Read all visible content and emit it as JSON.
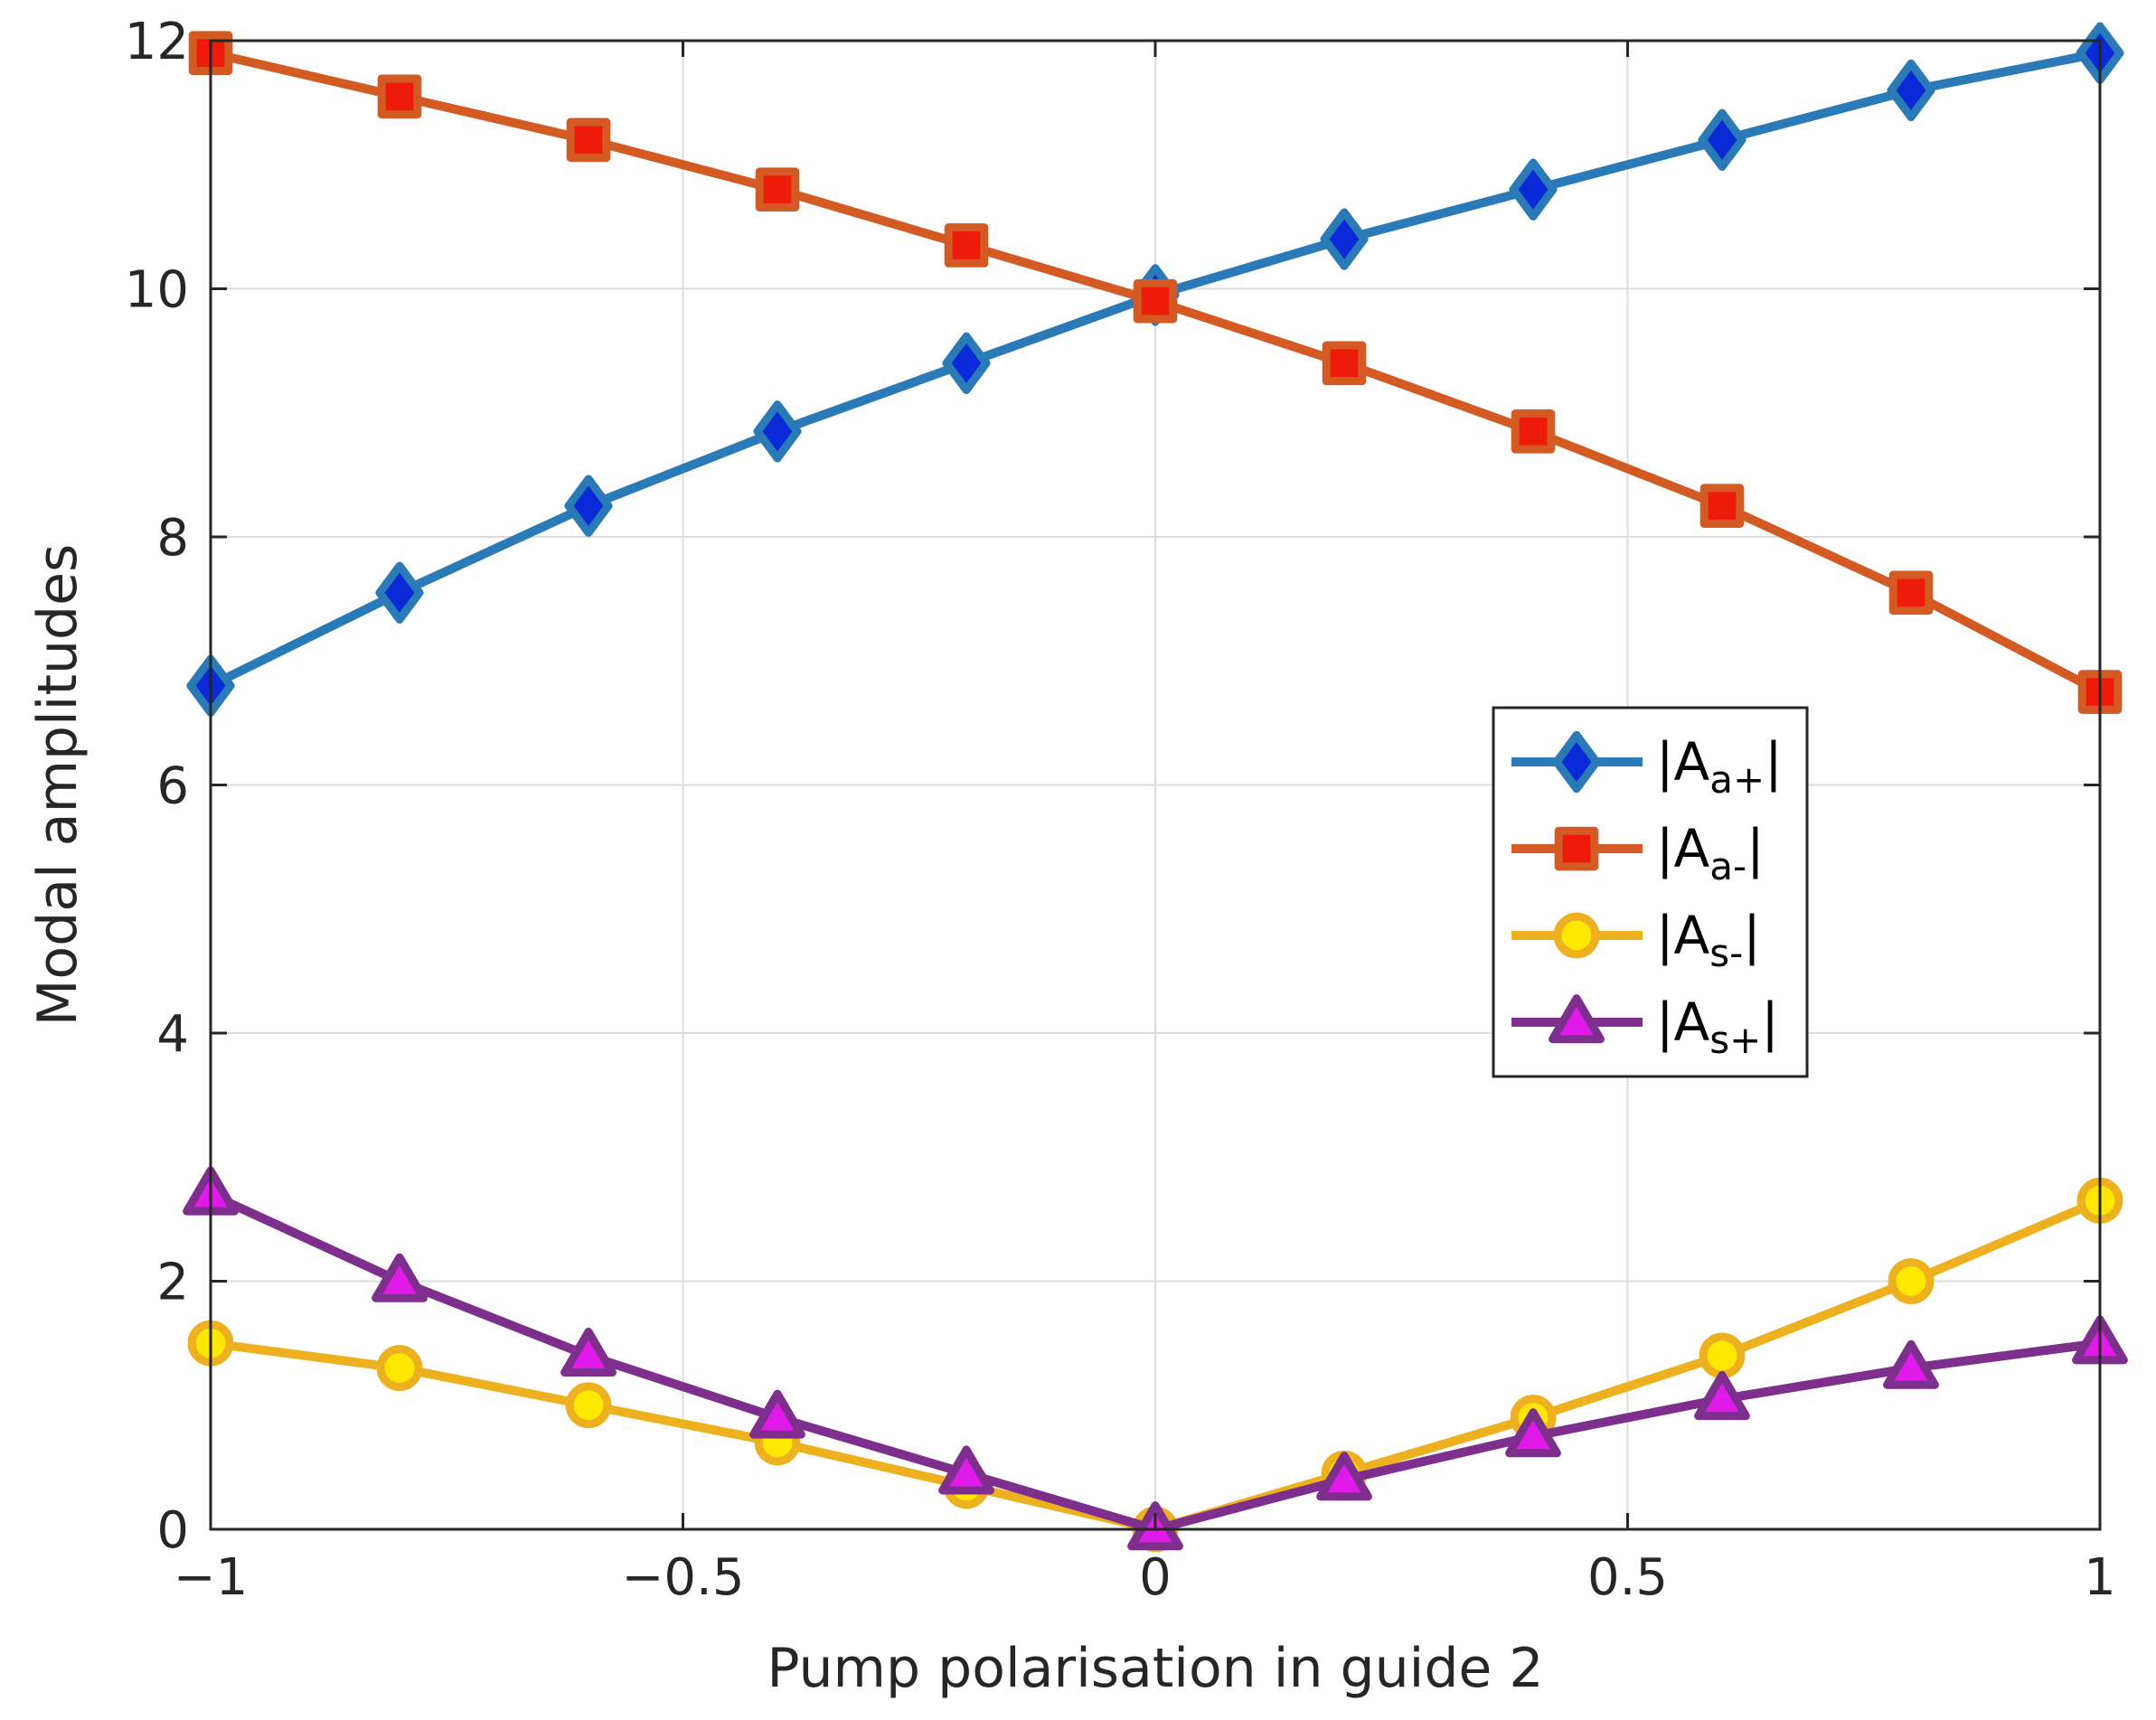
{
  "chart_data": {
    "type": "line",
    "title": "",
    "xlabel": "Pump polarisation in guide 2",
    "ylabel": "Modal amplitudes",
    "xlim": [
      -1,
      1
    ],
    "ylim": [
      0,
      12
    ],
    "grid": true,
    "x": [
      -1,
      -0.8,
      -0.6,
      -0.4,
      -0.2,
      0,
      0.2,
      0.4,
      0.6,
      0.8,
      1
    ],
    "xticks": [
      -1,
      -0.5,
      0,
      0.5,
      1
    ],
    "xtick_labels": [
      "−1",
      "−0.5",
      "0",
      "0.5",
      "1"
    ],
    "yticks": [
      0,
      2,
      4,
      6,
      8,
      10,
      12
    ],
    "ytick_labels": [
      "0",
      "2",
      "4",
      "6",
      "8",
      "10",
      "12"
    ],
    "legend_position": "center-right",
    "series": [
      {
        "name": "|Aa+|",
        "legend_base": "|A",
        "legend_sub": "a+",
        "legend_tail": "|",
        "marker": "diamond",
        "line_color": "#2a7ab8",
        "marker_fill": "#0a2ad8",
        "marker_edge": "#2a7ab8",
        "values": [
          6.8,
          7.55,
          8.25,
          8.85,
          9.4,
          9.95,
          10.4,
          10.8,
          11.2,
          11.6,
          11.9
        ]
      },
      {
        "name": "|Aa-|",
        "legend_base": "|A",
        "legend_sub": "a-",
        "legend_tail": "|",
        "marker": "square",
        "line_color": "#d35a22",
        "marker_fill": "#ee1a0a",
        "marker_edge": "#d35a22",
        "values": [
          11.9,
          11.55,
          11.2,
          10.8,
          10.35,
          9.9,
          9.4,
          8.85,
          8.25,
          7.55,
          6.75
        ]
      },
      {
        "name": "|As-|",
        "legend_base": "|A",
        "legend_sub": "s-",
        "legend_tail": "|",
        "marker": "circle",
        "line_color": "#edb120",
        "marker_fill": "#ffe800",
        "marker_edge": "#edb120",
        "values": [
          1.5,
          1.3,
          1.0,
          0.7,
          0.35,
          0.0,
          0.45,
          0.9,
          1.4,
          2.0,
          2.65
        ]
      },
      {
        "name": "|As+|",
        "legend_base": "|A",
        "legend_sub": "s+",
        "legend_tail": "|",
        "marker": "triangle",
        "line_color": "#7e2f8e",
        "marker_fill": "#e01ae8",
        "marker_edge": "#7e2f8e",
        "values": [
          2.7,
          2.0,
          1.4,
          0.9,
          0.45,
          0.0,
          0.4,
          0.75,
          1.05,
          1.3,
          1.5
        ]
      }
    ]
  }
}
